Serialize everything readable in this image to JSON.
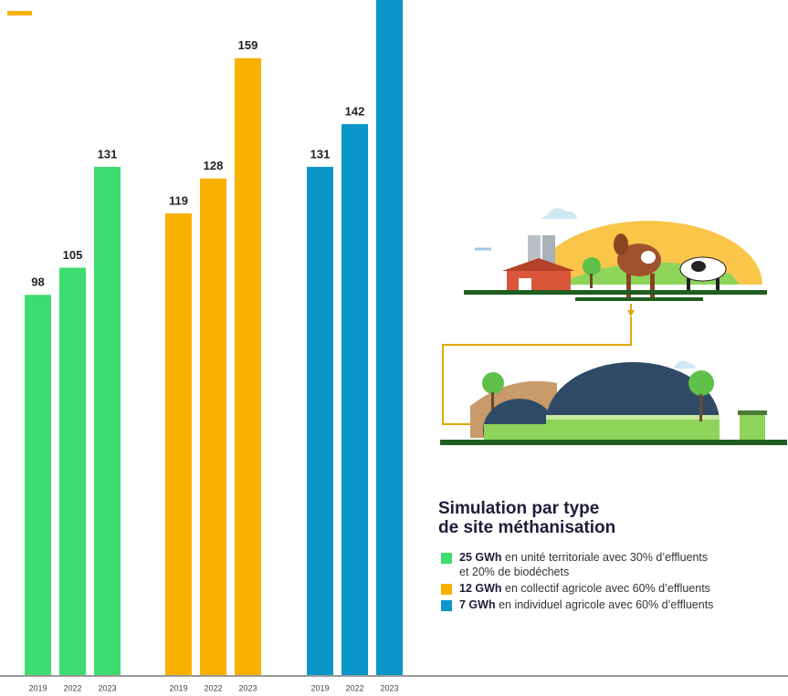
{
  "chart_data": {
    "type": "bar",
    "categories": [
      "2019",
      "2022",
      "2023"
    ],
    "series": [
      {
        "color": "#3ddc70",
        "values": [
          98,
          105,
          131
        ]
      },
      {
        "color": "#f9b000",
        "values": [
          119,
          128,
          159
        ]
      },
      {
        "color": "#0a96c8",
        "values": [
          131,
          142,
          180
        ]
      }
    ],
    "ylim": [
      0,
      174
    ],
    "legend_title": [
      "Simulation par type",
      "de site méthanisation"
    ],
    "legend": [
      {
        "bold": "25 GWh",
        "text": [
          "en unité territoriale avec 30% d’effluents",
          "et 20% de biodéchets"
        ]
      },
      {
        "bold": "12 GWh",
        "text": [
          "en collectif agricole avec 60% d’effluents"
        ]
      },
      {
        "bold": "7 GWh",
        "text": [
          "en individuel agricole avec 60% d’effluents"
        ]
      }
    ]
  }
}
